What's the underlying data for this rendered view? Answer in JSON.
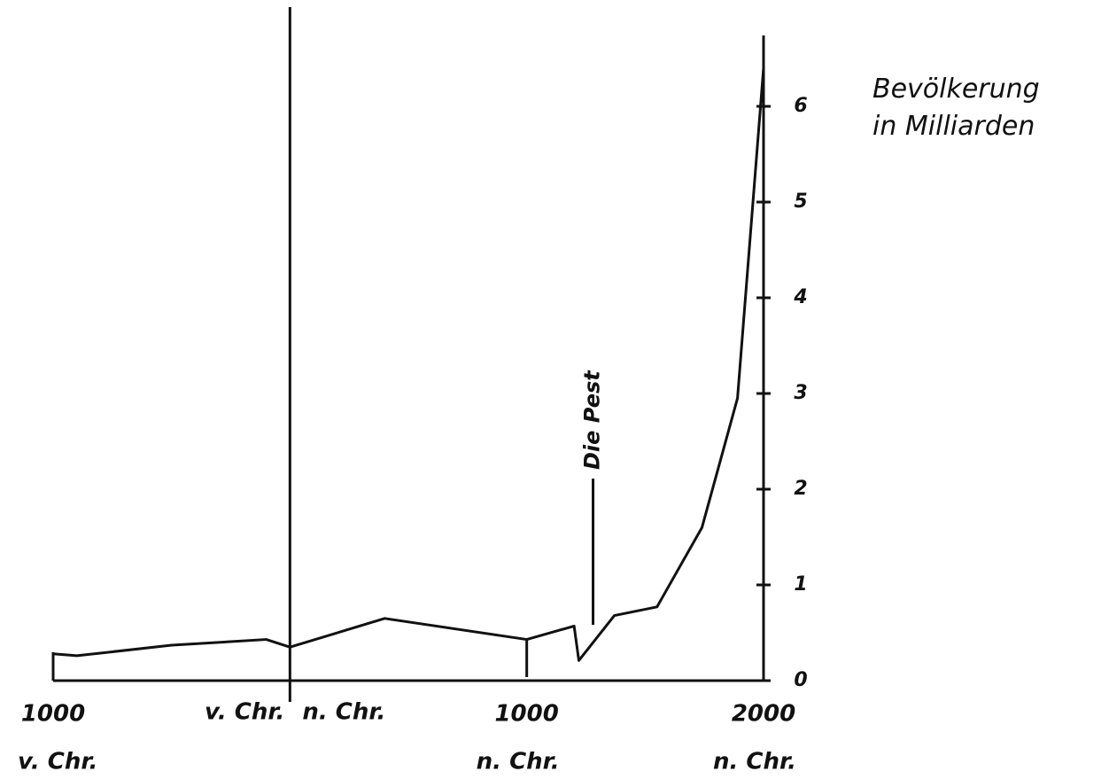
{
  "chart_data": {
    "type": "line",
    "ylabel": "Bevölkerung in Milliarden",
    "x": [
      -1000,
      -900,
      -500,
      -100,
      0,
      400,
      1000,
      1200,
      1220,
      1370,
      1550,
      1740,
      1890,
      2000
    ],
    "series": [
      {
        "color": "#111111",
        "values": [
          0.28,
          0.26,
          0.37,
          0.43,
          0.35,
          0.65,
          0.43,
          0.57,
          0.21,
          0.68,
          0.77,
          1.6,
          2.95,
          6.4
        ]
      }
    ],
    "xlim": [
      -1000,
      2000
    ],
    "xticks": [
      {
        "value": -1000,
        "label": "1000"
      },
      {
        "value": 1000,
        "label": "1000"
      },
      {
        "value": 2000,
        "label": "2000"
      }
    ],
    "era_labels": [
      {
        "x": -1000,
        "text": "v. Chr."
      },
      {
        "x": 0,
        "text": "v. Chr."
      },
      {
        "x": 0,
        "text": "n. Chr."
      },
      {
        "x": 1000,
        "text": "n. Chr."
      },
      {
        "x": 2000,
        "text": "n. Chr."
      }
    ],
    "ylim": [
      0,
      6.5
    ],
    "yticks": [
      0,
      1,
      2,
      3,
      4,
      5,
      6
    ],
    "annotations": [
      {
        "text": "Die Pest",
        "x": 1280
      }
    ]
  }
}
